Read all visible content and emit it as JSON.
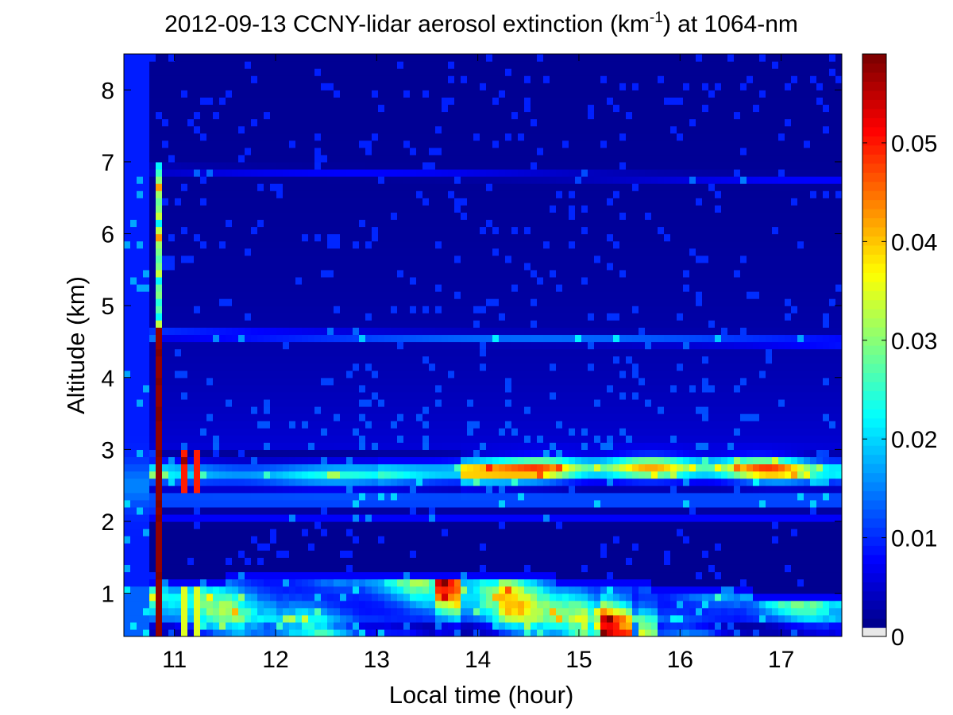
{
  "chart_data": {
    "type": "heatmap",
    "title": {
      "prefix": "2012-09-13 CCNY-lidar aerosol extinction (km",
      "superscript": "-1",
      "suffix": ") at 1064-nm"
    },
    "xlabel": "Local time (hour)",
    "ylabel": "Altitude (km)",
    "xlim": [
      10.5,
      17.6
    ],
    "ylim": [
      0.4,
      8.5
    ],
    "xticks": [
      11,
      12,
      13,
      14,
      15,
      16,
      17
    ],
    "yticks": [
      1,
      2,
      3,
      4,
      5,
      6,
      7,
      8
    ],
    "colorbar": {
      "range": [
        0,
        0.059
      ],
      "ticks": [
        "0",
        "0.01",
        "0.02",
        "0.03",
        "0.04",
        "0.05"
      ],
      "tick_values": [
        0,
        0.01,
        0.02,
        0.03,
        0.04,
        0.05
      ],
      "colormap": "jet"
    },
    "grid": false,
    "layers": [
      {
        "feature": "dense layer at 10.8 h",
        "x_range": [
          10.8,
          10.9
        ],
        "y_range": [
          0.4,
          4.7
        ],
        "value_max": 0.059
      },
      {
        "feature": "elevated aerosol layer",
        "x_range": [
          10.8,
          17.6
        ],
        "y_range": [
          2.3,
          3.0
        ],
        "value_max": 0.045
      },
      {
        "feature": "boundary layer",
        "x_range": [
          10.5,
          17.6
        ],
        "y_range": [
          0.4,
          1.3
        ],
        "value_max": 0.059
      },
      {
        "feature": "thin layer",
        "x_range": [
          10.5,
          17.6
        ],
        "y_range": [
          4.5,
          4.8
        ],
        "value_max": 0.012
      }
    ]
  }
}
